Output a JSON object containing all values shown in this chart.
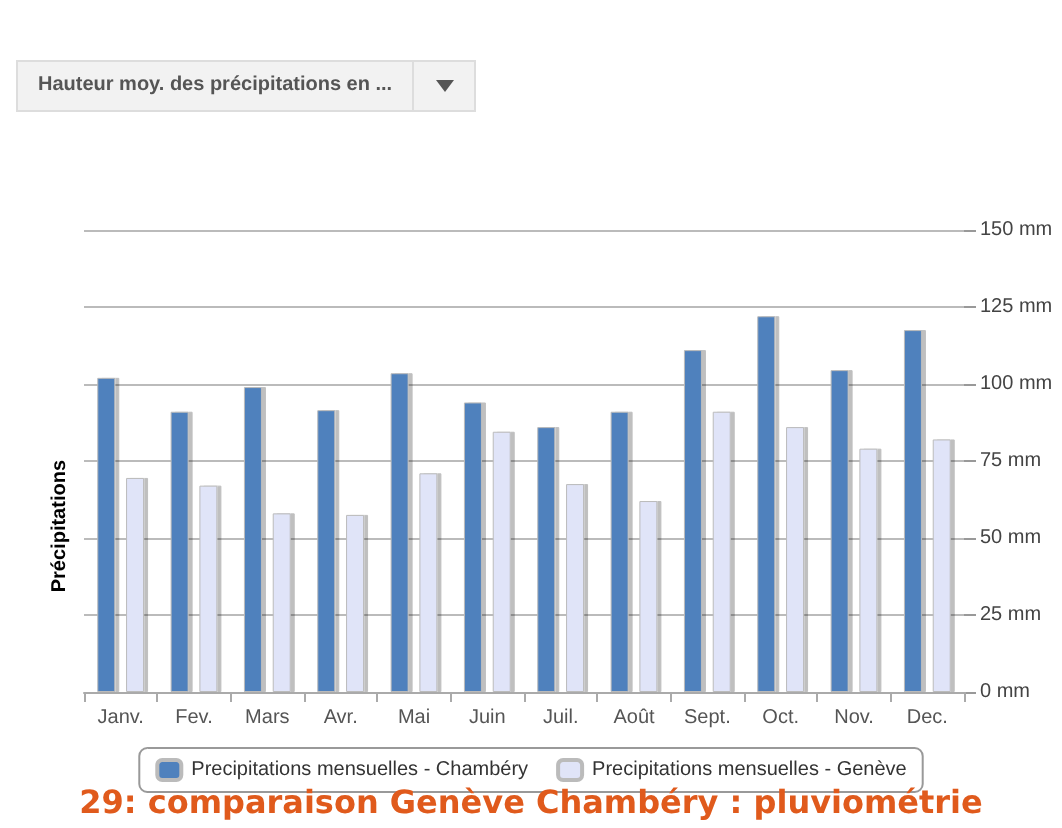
{
  "chart_data": {
    "type": "bar",
    "title": "29: comparaison Genève Chambéry : pluviométrie",
    "ylabel": "Précipitations",
    "annotations": [
      "Hauteur moy. des précipitations en ..."
    ],
    "categories": [
      "Janv.",
      "Fev.",
      "Mars",
      "Avr.",
      "Mai",
      "Juin",
      "Juil.",
      "Août",
      "Sept.",
      "Oct.",
      "Nov.",
      "Dec."
    ],
    "series": [
      {
        "name": "Precipitations mensuelles - Chambéry",
        "color": "#4f81bd",
        "values": [
          102,
          91,
          99,
          91.5,
          103.5,
          94,
          86,
          91,
          111,
          122,
          104.5,
          117.5
        ]
      },
      {
        "name": "Precipitations mensuelles - Genève",
        "color": "#e0e4f8",
        "values": [
          69.5,
          67,
          58,
          57.5,
          71,
          84.5,
          67.5,
          62,
          91,
          86,
          79,
          82
        ]
      }
    ],
    "ylim": [
      0,
      150
    ],
    "yticks": [
      {
        "value": 0,
        "label": "0 mm"
      },
      {
        "value": 25,
        "label": "25 mm"
      },
      {
        "value": 50,
        "label": "50 mm"
      },
      {
        "value": 75,
        "label": "75 mm"
      },
      {
        "value": 100,
        "label": "100 mm"
      },
      {
        "value": 125,
        "label": "125 mm"
      },
      {
        "value": 150,
        "label": "150 mm"
      }
    ],
    "grid": "y",
    "legend": "bottom"
  }
}
